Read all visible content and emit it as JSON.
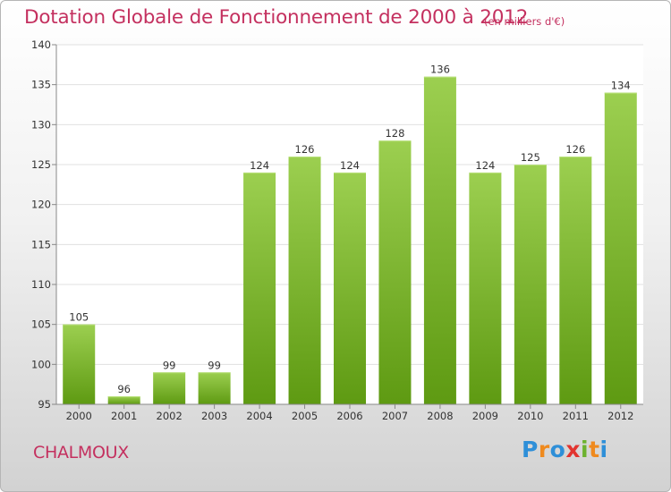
{
  "header": {
    "title": "Dotation Globale de Fonctionnement de 2000 à 2012",
    "subtitle": "(en milliers d'€)"
  },
  "commune": "CHALMOUX",
  "logo": {
    "text": "Proxiti",
    "letters": [
      {
        "ch": "P",
        "color": "#2e8fd8"
      },
      {
        "ch": "r",
        "color": "#ef8a1e"
      },
      {
        "ch": "o",
        "color": "#2e8fd8"
      },
      {
        "ch": "x",
        "color": "#e2342f"
      },
      {
        "ch": "i",
        "color": "#6cb22f"
      },
      {
        "ch": "t",
        "color": "#ef8a1e"
      },
      {
        "ch": "i",
        "color": "#2e8fd8"
      }
    ]
  },
  "colors": {
    "title": "#c4305f",
    "bar_top": "#9ccf50",
    "bar_bottom": "#5e9a12",
    "grid": "#e0e0e0"
  },
  "chart_data": {
    "type": "bar",
    "categories": [
      "2000",
      "2001",
      "2002",
      "2003",
      "2004",
      "2005",
      "2006",
      "2007",
      "2008",
      "2009",
      "2010",
      "2011",
      "2012"
    ],
    "values": [
      105,
      96,
      99,
      99,
      124,
      126,
      124,
      128,
      136,
      124,
      125,
      126,
      134
    ],
    "ylim": [
      95,
      140
    ],
    "yticks": [
      95,
      100,
      105,
      110,
      115,
      120,
      125,
      130,
      135,
      140
    ],
    "grid": true,
    "legend": "none"
  }
}
